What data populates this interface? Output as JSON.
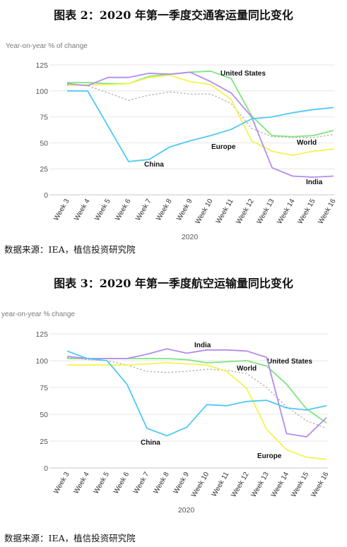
{
  "figure1": {
    "caption": "图表 2：2020 年第一季度交通客运量同比变化",
    "source": "数据来源：IEA，植信投资研究院"
  },
  "figure2": {
    "caption": "图表 3：2020 年第一季度航空运输量同比变化",
    "source": "数据来源：IEA，植信投资研究院"
  },
  "chart_data": [
    {
      "type": "line",
      "ylabel": "Year-on-year % of change",
      "xlabel": "2020",
      "ylim": [
        0,
        125
      ],
      "yticks": [
        0,
        25,
        50,
        75,
        100,
        125
      ],
      "grid": true,
      "categories": [
        "Week 3",
        "Week 4",
        "Week 5",
        "Week 6",
        "Week 7",
        "Week 8",
        "Week 9",
        "Week 10",
        "Week 11",
        "Week 12",
        "Week 13",
        "Week 14",
        "Week 15",
        "Week 16"
      ],
      "series": [
        {
          "name": "United States",
          "color": "#7ee57e",
          "dash": false,
          "values": [
            108,
            108,
            107,
            107,
            114,
            116,
            118,
            119,
            112,
            76,
            57,
            56,
            57,
            62
          ]
        },
        {
          "name": "World",
          "color": "#b4b4b4",
          "dash": true,
          "values": [
            106,
            105,
            98,
            91,
            96,
            99,
            97,
            97,
            88,
            64,
            56,
            55,
            55,
            58
          ]
        },
        {
          "name": "Europe",
          "color": "#f4f450",
          "dash": false,
          "values": [
            105,
            106,
            106,
            107,
            113,
            115,
            109,
            106,
            92,
            52,
            42,
            38,
            42,
            44
          ]
        },
        {
          "name": "India",
          "color": "#b28cf0",
          "dash": false,
          "values": [
            107,
            105,
            113,
            113,
            117,
            116,
            118,
            109,
            98,
            75,
            26,
            18,
            17,
            18
          ]
        },
        {
          "name": "China",
          "color": "#4ec9f3",
          "dash": false,
          "values": [
            100,
            100,
            66,
            32,
            34,
            46,
            52,
            57,
            63,
            73,
            75,
            79,
            82,
            84
          ]
        }
      ]
    },
    {
      "type": "line",
      "ylabel": "year-on-year % change",
      "xlabel": "2020",
      "ylim": [
        0,
        125
      ],
      "yticks": [
        0,
        25,
        50,
        75,
        100,
        125
      ],
      "grid": true,
      "categories": [
        "Week 3",
        "Week 4",
        "Week 5",
        "Week 6",
        "Week 7",
        "Week 8",
        "Week 9",
        "Week 10",
        "Week 11",
        "Week 12",
        "Week 13",
        "Week 14",
        "Week 15",
        "Week 16"
      ],
      "series": [
        {
          "name": "United States",
          "color": "#7ee57e",
          "dash": false,
          "values": [
            102,
            102,
            102,
            102,
            102,
            102,
            101,
            98,
            99,
            100,
            95,
            78,
            55,
            42
          ]
        },
        {
          "name": "World",
          "color": "#b4b4b4",
          "dash": true,
          "values": [
            103,
            101,
            100,
            96,
            90,
            89,
            90,
            92,
            91,
            88,
            75,
            57,
            44,
            37
          ]
        },
        {
          "name": "Europe",
          "color": "#f4f450",
          "dash": false,
          "values": [
            96,
            96,
            96,
            96,
            97,
            98,
            97,
            96,
            90,
            74,
            36,
            17,
            10,
            8
          ]
        },
        {
          "name": "India",
          "color": "#b28cf0",
          "dash": false,
          "values": [
            104,
            102,
            102,
            102,
            106,
            111,
            107,
            110,
            110,
            109,
            103,
            32,
            29,
            47
          ]
        },
        {
          "name": "China",
          "color": "#4ec9f3",
          "dash": false,
          "values": [
            109,
            102,
            100,
            78,
            37,
            30,
            38,
            59,
            58,
            62,
            63,
            56,
            54,
            58
          ]
        }
      ]
    }
  ]
}
